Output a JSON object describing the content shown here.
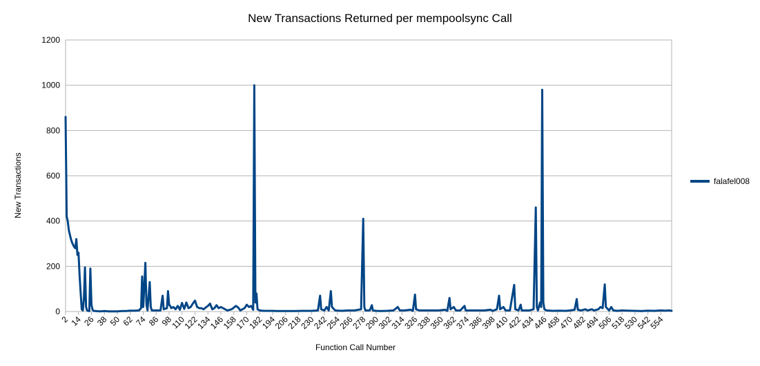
{
  "chart_data": {
    "type": "line",
    "title": "New Transactions Returned per mempoolsync Call",
    "xlabel": "Function Call Number",
    "ylabel": "New Transactions",
    "ylim": [
      0,
      1200
    ],
    "yticks": [
      0,
      200,
      400,
      600,
      800,
      1000,
      1200
    ],
    "xlim": [
      2,
      564
    ],
    "xticks": [
      2,
      14,
      26,
      38,
      50,
      62,
      74,
      86,
      98,
      110,
      122,
      134,
      146,
      158,
      170,
      182,
      194,
      206,
      218,
      230,
      242,
      254,
      266,
      278,
      290,
      302,
      314,
      326,
      338,
      350,
      362,
      374,
      386,
      398,
      410,
      422,
      434,
      446,
      458,
      470,
      482,
      494,
      506,
      518,
      530,
      542,
      554
    ],
    "grid": "horizontal",
    "legend_position": "right",
    "line_color": "#004586",
    "series": [
      {
        "name": "falafel008",
        "points": [
          [
            2,
            860
          ],
          [
            3,
            420
          ],
          [
            4,
            400
          ],
          [
            5,
            360
          ],
          [
            6,
            340
          ],
          [
            7,
            320
          ],
          [
            8,
            305
          ],
          [
            9,
            295
          ],
          [
            10,
            285
          ],
          [
            11,
            280
          ],
          [
            12,
            320
          ],
          [
            13,
            250
          ],
          [
            14,
            260
          ],
          [
            15,
            160
          ],
          [
            16,
            80
          ],
          [
            17,
            10
          ],
          [
            18,
            5
          ],
          [
            19,
            60
          ],
          [
            20,
            195
          ],
          [
            21,
            20
          ],
          [
            22,
            5
          ],
          [
            23,
            3
          ],
          [
            24,
            2
          ],
          [
            25,
            190
          ],
          [
            26,
            30
          ],
          [
            27,
            8
          ],
          [
            28,
            3
          ],
          [
            30,
            2
          ],
          [
            34,
            1
          ],
          [
            38,
            2
          ],
          [
            42,
            1
          ],
          [
            46,
            1
          ],
          [
            50,
            1
          ],
          [
            54,
            2
          ],
          [
            58,
            2
          ],
          [
            62,
            4
          ],
          [
            66,
            4
          ],
          [
            70,
            5
          ],
          [
            72,
            15
          ],
          [
            73,
            155
          ],
          [
            74,
            20
          ],
          [
            75,
            110
          ],
          [
            76,
            215
          ],
          [
            77,
            30
          ],
          [
            78,
            5
          ],
          [
            80,
            130
          ],
          [
            81,
            20
          ],
          [
            82,
            5
          ],
          [
            86,
            5
          ],
          [
            90,
            5
          ],
          [
            92,
            70
          ],
          [
            93,
            10
          ],
          [
            96,
            15
          ],
          [
            97,
            90
          ],
          [
            98,
            30
          ],
          [
            99,
            25
          ],
          [
            100,
            15
          ],
          [
            102,
            20
          ],
          [
            104,
            10
          ],
          [
            106,
            25
          ],
          [
            108,
            8
          ],
          [
            110,
            38
          ],
          [
            112,
            12
          ],
          [
            114,
            40
          ],
          [
            116,
            15
          ],
          [
            118,
            20
          ],
          [
            120,
            35
          ],
          [
            122,
            48
          ],
          [
            124,
            20
          ],
          [
            126,
            15
          ],
          [
            128,
            15
          ],
          [
            130,
            10
          ],
          [
            132,
            18
          ],
          [
            134,
            25
          ],
          [
            136,
            35
          ],
          [
            138,
            10
          ],
          [
            140,
            15
          ],
          [
            142,
            28
          ],
          [
            144,
            15
          ],
          [
            146,
            20
          ],
          [
            150,
            10
          ],
          [
            152,
            5
          ],
          [
            156,
            10
          ],
          [
            160,
            25
          ],
          [
            162,
            18
          ],
          [
            164,
            5
          ],
          [
            166,
            10
          ],
          [
            168,
            15
          ],
          [
            170,
            30
          ],
          [
            172,
            20
          ],
          [
            174,
            25
          ],
          [
            176,
            8
          ],
          [
            177,
            1000
          ],
          [
            178,
            40
          ],
          [
            179,
            80
          ],
          [
            180,
            10
          ],
          [
            182,
            5
          ],
          [
            186,
            3
          ],
          [
            190,
            3
          ],
          [
            194,
            3
          ],
          [
            198,
            2
          ],
          [
            206,
            2
          ],
          [
            214,
            2
          ],
          [
            222,
            3
          ],
          [
            230,
            3
          ],
          [
            236,
            5
          ],
          [
            238,
            70
          ],
          [
            239,
            10
          ],
          [
            242,
            5
          ],
          [
            244,
            20
          ],
          [
            246,
            5
          ],
          [
            248,
            90
          ],
          [
            249,
            20
          ],
          [
            252,
            5
          ],
          [
            258,
            3
          ],
          [
            264,
            5
          ],
          [
            270,
            5
          ],
          [
            276,
            10
          ],
          [
            278,
            410
          ],
          [
            279,
            20
          ],
          [
            280,
            5
          ],
          [
            284,
            5
          ],
          [
            286,
            28
          ],
          [
            287,
            5
          ],
          [
            290,
            3
          ],
          [
            294,
            2
          ],
          [
            300,
            3
          ],
          [
            306,
            5
          ],
          [
            310,
            20
          ],
          [
            312,
            5
          ],
          [
            316,
            5
          ],
          [
            322,
            8
          ],
          [
            324,
            3
          ],
          [
            326,
            75
          ],
          [
            327,
            10
          ],
          [
            330,
            5
          ],
          [
            336,
            5
          ],
          [
            342,
            5
          ],
          [
            348,
            5
          ],
          [
            354,
            8
          ],
          [
            356,
            3
          ],
          [
            358,
            60
          ],
          [
            359,
            10
          ],
          [
            362,
            20
          ],
          [
            364,
            5
          ],
          [
            368,
            5
          ],
          [
            372,
            25
          ],
          [
            373,
            5
          ],
          [
            378,
            5
          ],
          [
            384,
            5
          ],
          [
            390,
            5
          ],
          [
            396,
            8
          ],
          [
            398,
            3
          ],
          [
            402,
            10
          ],
          [
            404,
            70
          ],
          [
            405,
            10
          ],
          [
            408,
            20
          ],
          [
            410,
            5
          ],
          [
            414,
            5
          ],
          [
            418,
            118
          ],
          [
            419,
            10
          ],
          [
            422,
            5
          ],
          [
            424,
            30
          ],
          [
            425,
            5
          ],
          [
            428,
            5
          ],
          [
            432,
            5
          ],
          [
            436,
            10
          ],
          [
            438,
            460
          ],
          [
            439,
            20
          ],
          [
            440,
            5
          ],
          [
            442,
            40
          ],
          [
            443,
            20
          ],
          [
            444,
            980
          ],
          [
            445,
            40
          ],
          [
            446,
            10
          ],
          [
            448,
            5
          ],
          [
            454,
            3
          ],
          [
            460,
            4
          ],
          [
            466,
            3
          ],
          [
            470,
            5
          ],
          [
            474,
            8
          ],
          [
            476,
            55
          ],
          [
            477,
            8
          ],
          [
            480,
            5
          ],
          [
            484,
            10
          ],
          [
            486,
            5
          ],
          [
            490,
            10
          ],
          [
            492,
            5
          ],
          [
            496,
            10
          ],
          [
            498,
            20
          ],
          [
            500,
            15
          ],
          [
            502,
            120
          ],
          [
            503,
            20
          ],
          [
            506,
            5
          ],
          [
            508,
            20
          ],
          [
            510,
            5
          ],
          [
            514,
            3
          ],
          [
            518,
            5
          ],
          [
            524,
            4
          ],
          [
            530,
            3
          ],
          [
            536,
            2
          ],
          [
            542,
            4
          ],
          [
            548,
            3
          ],
          [
            554,
            5
          ],
          [
            558,
            4
          ],
          [
            562,
            5
          ],
          [
            564,
            3
          ]
        ]
      }
    ]
  }
}
